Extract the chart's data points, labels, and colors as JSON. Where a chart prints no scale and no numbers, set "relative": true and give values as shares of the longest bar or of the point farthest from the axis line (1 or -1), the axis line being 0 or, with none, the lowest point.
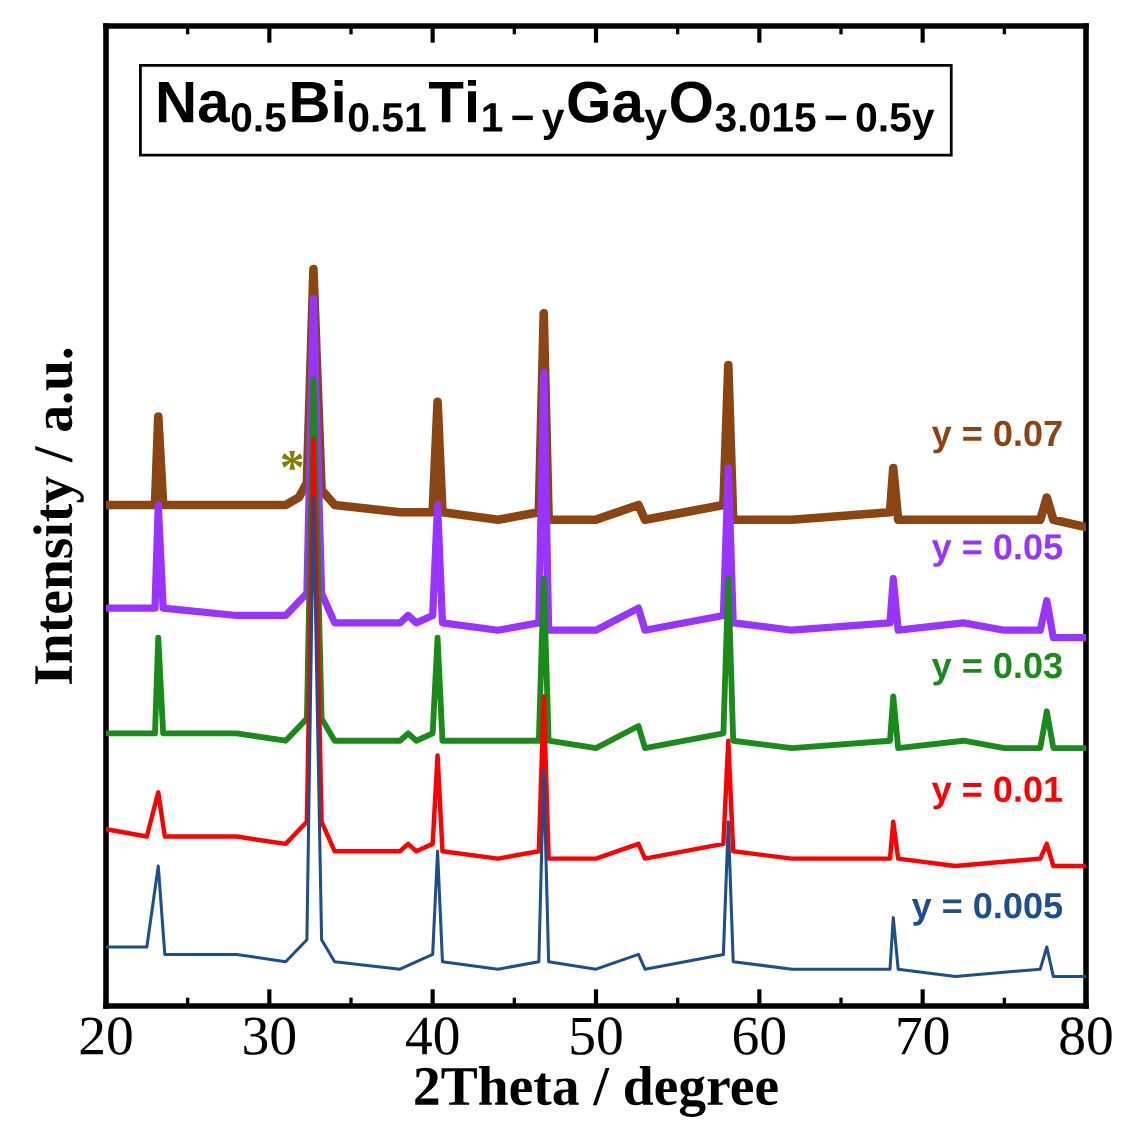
{
  "chart_data": {
    "type": "line",
    "title": "Na$_{0.5}$Bi$_{0.51}$Ti$_{1−y}$Ga$_{y}$O$_{3.015−0.5y}$",
    "xlabel": "2Theta / degree",
    "ylabel": "Intensity / a.u.",
    "relative": true,
    "xlim": [
      20,
      80
    ],
    "xticks": [
      20,
      30,
      40,
      50,
      60,
      70,
      80
    ],
    "tick_labels": "x",
    "grid": false,
    "legend": false,
    "marker": "none",
    "line_style": "solid",
    "annotations": [
      "*"
    ],
    "series": [
      {
        "name": "y = 0.005",
        "color": "#1f4e8c",
        "x": [
          20,
          22.5,
          23.2,
          23.6,
          28,
          31,
          32.3,
          32.7,
          33.2,
          34,
          38,
          40.0,
          40.3,
          40.6,
          44,
          46.5,
          46.8,
          47.1,
          50,
          52.6,
          53,
          57.8,
          58.1,
          58.4,
          62,
          68.0,
          68.2,
          68.5,
          72,
          77.2,
          77.6,
          78,
          80
        ],
        "values": [
          0.08,
          0.08,
          0.19,
          0.07,
          0.07,
          0.06,
          0.09,
          0.69,
          0.09,
          0.06,
          0.05,
          0.07,
          0.21,
          0.06,
          0.05,
          0.06,
          0.32,
          0.06,
          0.05,
          0.07,
          0.05,
          0.07,
          0.25,
          0.06,
          0.05,
          0.05,
          0.12,
          0.05,
          0.04,
          0.05,
          0.08,
          0.04,
          0.04
        ]
      },
      {
        "name": "y = 0.01",
        "color": "#ff0000",
        "x": [
          20,
          22.5,
          23.2,
          23.6,
          28,
          31,
          32.3,
          32.7,
          33.2,
          34,
          38,
          38.5,
          39,
          40.0,
          40.3,
          40.6,
          44,
          46.5,
          46.8,
          47.1,
          50,
          52.6,
          53,
          57.8,
          58.1,
          58.4,
          62,
          68.0,
          68.2,
          68.5,
          72,
          77.2,
          77.6,
          78,
          80
        ],
        "values": [
          0.24,
          0.23,
          0.29,
          0.23,
          0.23,
          0.22,
          0.25,
          0.77,
          0.25,
          0.21,
          0.21,
          0.22,
          0.21,
          0.22,
          0.34,
          0.21,
          0.2,
          0.21,
          0.42,
          0.2,
          0.2,
          0.22,
          0.2,
          0.22,
          0.36,
          0.21,
          0.2,
          0.2,
          0.25,
          0.2,
          0.19,
          0.2,
          0.22,
          0.19,
          0.19
        ]
      },
      {
        "name": "y = 0.03",
        "color": "#1a8a1a",
        "x": [
          20,
          23.0,
          23.2,
          23.5,
          28,
          31,
          32.3,
          32.7,
          33.2,
          34,
          38,
          38.5,
          39,
          40.0,
          40.3,
          40.6,
          44,
          46.5,
          46.8,
          47.1,
          50,
          52.6,
          53,
          57.8,
          58.1,
          58.4,
          62,
          68.0,
          68.2,
          68.5,
          72.5,
          75,
          77.2,
          77.6,
          78,
          80
        ],
        "values": [
          0.37,
          0.37,
          0.5,
          0.37,
          0.37,
          0.36,
          0.39,
          0.85,
          0.39,
          0.36,
          0.36,
          0.37,
          0.36,
          0.37,
          0.5,
          0.36,
          0.36,
          0.36,
          0.58,
          0.36,
          0.35,
          0.38,
          0.35,
          0.37,
          0.58,
          0.36,
          0.35,
          0.36,
          0.42,
          0.35,
          0.36,
          0.35,
          0.35,
          0.4,
          0.35,
          0.35
        ]
      },
      {
        "name": "y = 0.05",
        "color": "#9933ff",
        "x": [
          20,
          23.0,
          23.2,
          23.5,
          28,
          31,
          32.3,
          32.7,
          33.2,
          34,
          38,
          38.5,
          39,
          40.0,
          40.3,
          40.6,
          44,
          46.5,
          46.8,
          47.1,
          50,
          52.6,
          53,
          57.8,
          58.1,
          58.4,
          62,
          68.0,
          68.2,
          68.5,
          72.5,
          75,
          77.2,
          77.6,
          78,
          80
        ],
        "values": [
          0.54,
          0.54,
          0.68,
          0.54,
          0.53,
          0.53,
          0.56,
          0.96,
          0.56,
          0.52,
          0.52,
          0.53,
          0.52,
          0.53,
          0.68,
          0.52,
          0.51,
          0.52,
          0.86,
          0.51,
          0.51,
          0.54,
          0.51,
          0.53,
          0.73,
          0.52,
          0.51,
          0.52,
          0.58,
          0.51,
          0.52,
          0.51,
          0.51,
          0.55,
          0.5,
          0.5
        ]
      },
      {
        "name": "y = 0.07",
        "color": "#8b4513",
        "x": [
          20,
          23.0,
          23.2,
          23.5,
          28,
          31,
          31.8,
          32.3,
          32.7,
          33.2,
          34,
          38,
          40.0,
          40.3,
          40.6,
          44,
          46.5,
          46.8,
          47.1,
          50,
          52.6,
          53,
          57.8,
          58.1,
          58.4,
          62,
          68.0,
          68.2,
          68.5,
          72.5,
          75,
          77.2,
          77.6,
          78,
          80
        ],
        "values": [
          0.68,
          0.68,
          0.8,
          0.68,
          0.68,
          0.68,
          0.69,
          0.71,
          1.0,
          0.7,
          0.68,
          0.67,
          0.67,
          0.82,
          0.67,
          0.66,
          0.67,
          0.94,
          0.66,
          0.66,
          0.68,
          0.66,
          0.68,
          0.87,
          0.66,
          0.66,
          0.67,
          0.73,
          0.66,
          0.66,
          0.66,
          0.66,
          0.69,
          0.66,
          0.65
        ]
      }
    ]
  }
}
